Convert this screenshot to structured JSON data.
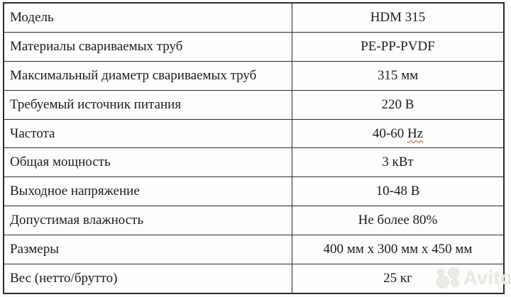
{
  "colors": {
    "background": "#fcfcfb",
    "table_background": "#fdfdfc",
    "border": "#2b2b2b",
    "text": "#1c1c1c",
    "spellcheck_underline": "#c4402e",
    "watermark": "#e9e9e6"
  },
  "table": {
    "rows": [
      {
        "label": "Модель",
        "value": "HDM 315"
      },
      {
        "label": "Материалы свариваемых труб",
        "value": "PE-PP-PVDF"
      },
      {
        "label": "Максимальный диаметр свариваемых труб",
        "value": "315 мм"
      },
      {
        "label": "Требуемый источник питания",
        "value": "220 В"
      },
      {
        "label": "Частота",
        "value": "40-60 Hz",
        "spellcheck_part": "Hz"
      },
      {
        "label": "Общая мощность",
        "value": "3 кВт"
      },
      {
        "label": "Выходное напряжение",
        "value": "10-48 В"
      },
      {
        "label": "Допустимая влажность",
        "value": "Не более 80%"
      },
      {
        "label": "Размеры",
        "value": "400 мм x 300 мм x 450 мм"
      },
      {
        "label": "Вес (нетто/брутто)",
        "value": "25 кг"
      }
    ]
  },
  "watermark": {
    "text": "Avito"
  }
}
